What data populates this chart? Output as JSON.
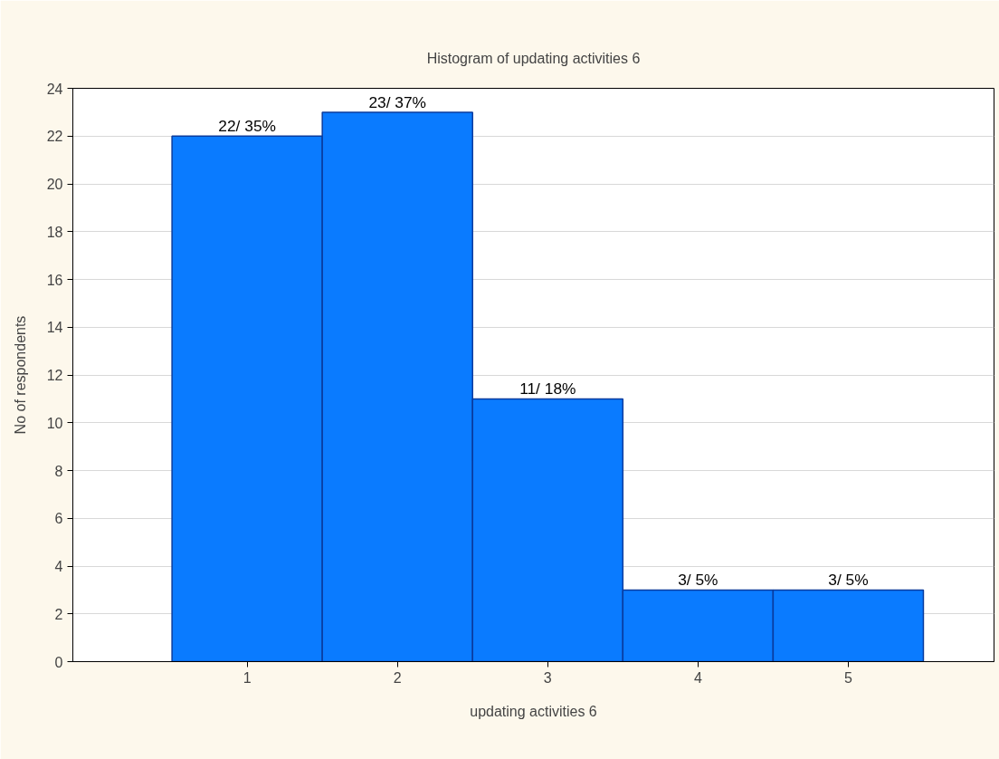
{
  "chart_data": {
    "type": "histogram",
    "title": "Histogram of updating activities 6",
    "xlabel": "updating activities 6",
    "ylabel": "No of respondents",
    "bins": [
      0.5,
      1.5,
      2.5,
      3.5,
      4.5,
      5.5
    ],
    "values": [
      22,
      23,
      11,
      3,
      3
    ],
    "value_labels": [
      "22/ 35%",
      "23/ 37%",
      "11/ 18%",
      "3/ 5%",
      "3/ 5%"
    ],
    "color": "#0a7bff",
    "xlim": [
      -0.16,
      5.97
    ],
    "xticks": [
      1,
      2,
      3,
      4,
      5
    ],
    "ylim": [
      0,
      24
    ],
    "yticks": [
      0,
      2,
      4,
      6,
      8,
      10,
      12,
      14,
      16,
      18,
      20,
      22,
      24
    ],
    "grid": "y"
  }
}
